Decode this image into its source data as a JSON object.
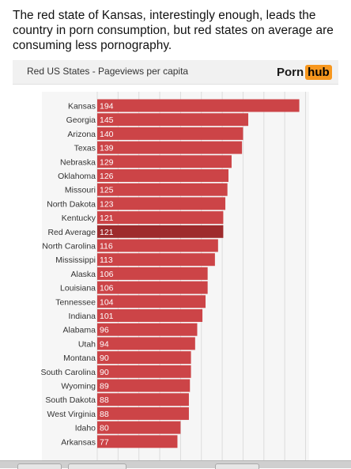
{
  "caption": "The red state of Kansas, interestingly enough, leads the country in porn consumption, but red states on average are consuming less pornography.",
  "brand": {
    "part1": "Porn",
    "part2": "hub",
    "accent_color": "#f7971e"
  },
  "colors": {
    "bar": "#cc4447",
    "highlight_bar": "#9e2b2d",
    "grid": "#dcdcdc",
    "panel": "#f1f1f1"
  },
  "chart_data": {
    "type": "bar",
    "orientation": "horizontal",
    "title": "Red US States - Pageviews per capita",
    "highlight": "Red Average",
    "categories": [
      "Kansas",
      "Georgia",
      "Arizona",
      "Texas",
      "Nebraska",
      "Oklahoma",
      "Missouri",
      "North Dakota",
      "Kentucky",
      "Red Average",
      "North Carolina",
      "Mississippi",
      "Alaska",
      "Louisiana",
      "Tennessee",
      "Indiana",
      "Alabama",
      "Utah",
      "Montana",
      "South Carolina",
      "Wyoming",
      "South Dakota",
      "West Virginia",
      "Idaho",
      "Arkansas"
    ],
    "values": [
      194,
      145,
      140,
      139,
      129,
      126,
      125,
      123,
      121,
      121,
      116,
      113,
      106,
      106,
      104,
      101,
      96,
      94,
      90,
      90,
      89,
      88,
      88,
      80,
      77
    ],
    "xlim": [
      0,
      200
    ],
    "grid": true,
    "legend": "none"
  }
}
